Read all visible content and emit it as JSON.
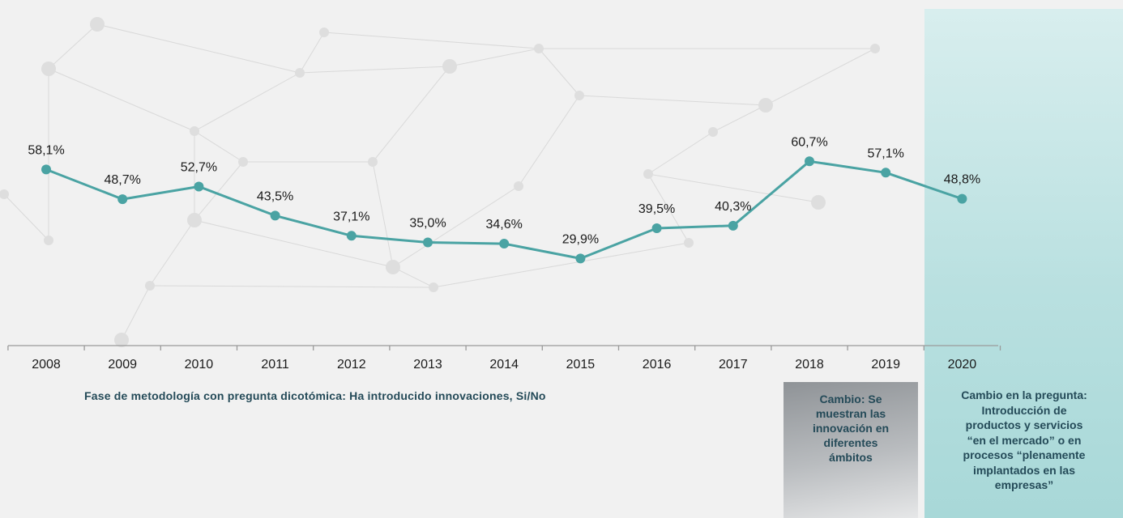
{
  "chart_data": {
    "type": "line",
    "categories": [
      "2008",
      "2009",
      "2010",
      "2011",
      "2012",
      "2013",
      "2014",
      "2015",
      "2016",
      "2017",
      "2018",
      "2019",
      "2020"
    ],
    "values": [
      58.1,
      48.7,
      52.7,
      43.5,
      37.1,
      35.0,
      34.6,
      29.9,
      39.5,
      40.3,
      60.7,
      57.1,
      48.8
    ],
    "data_labels": [
      "58,1%",
      "48,7%",
      "52,7%",
      "43,5%",
      "37,1%",
      "35,0%",
      "34,6%",
      "29,9%",
      "39,5%",
      "40,3%",
      "60,7%",
      "57,1%",
      "48,8%"
    ],
    "line_color": "#4aa3a3",
    "grid": false,
    "legend": "none"
  },
  "notes": {
    "methodology": "Fase de metodología  con pregunta dicotómica:  Ha introducido innovaciones,  Si/No",
    "change_2018": "Cambio:  Se\nmuestran las\ninnovación  en\ndiferentes\námbitos",
    "change_2020": "Cambio  en la pregunta:\nIntroducción  de\nproductos y servicios\n“en el mercado”  o en\nprocesos  “plenamente\nimplantados  en las\nempresas”"
  },
  "colors": {
    "background": "#f1f1f1",
    "panel_2020": "#b9e0e0",
    "panel_2018": "#a9acaf",
    "note_text": "#244a58"
  }
}
